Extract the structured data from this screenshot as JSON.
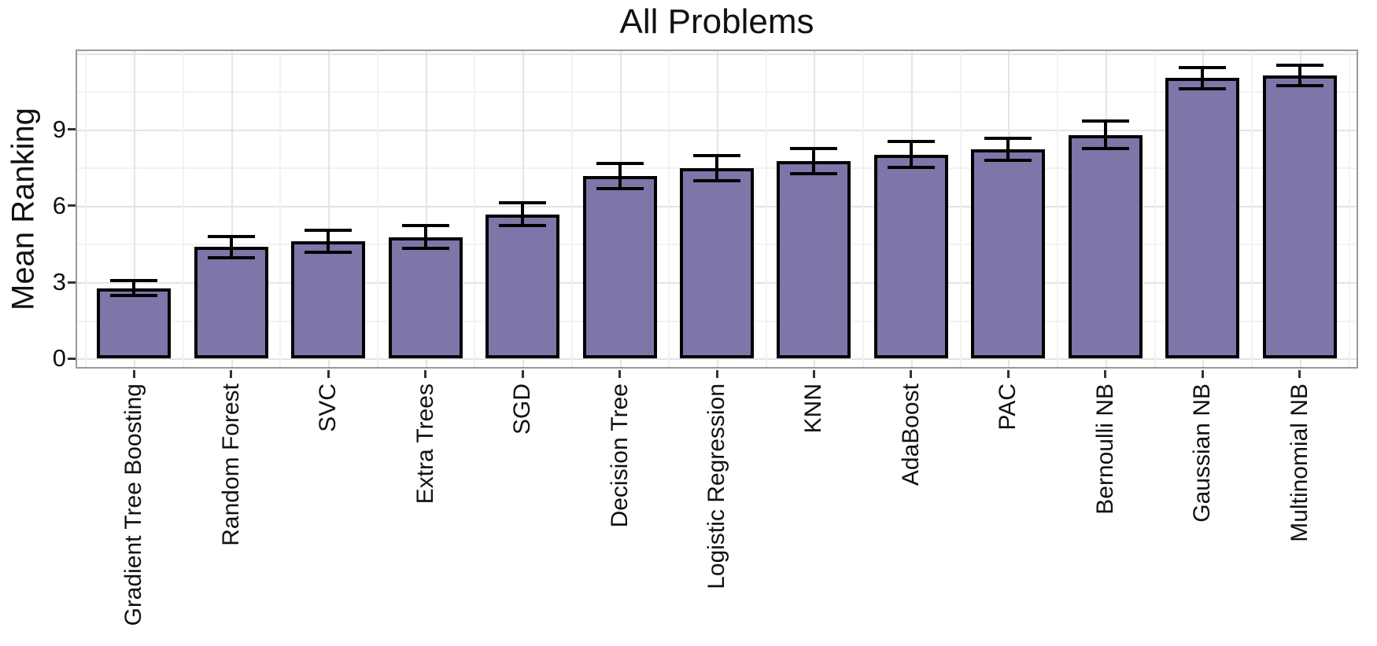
{
  "chart_data": {
    "type": "bar",
    "title": "All Problems",
    "xlabel": "",
    "ylabel": "Mean Ranking",
    "categories": [
      "Gradient Tree Boosting",
      "Random Forest",
      "SVC",
      "Extra Trees",
      "SGD",
      "Decision Tree",
      "Logistic Regression",
      "KNN",
      "AdaBoost",
      "PAC",
      "Bernoulli NB",
      "Gaussian NB",
      "Multinomial NB"
    ],
    "values": [
      2.76,
      4.38,
      4.62,
      4.77,
      5.67,
      7.17,
      7.48,
      7.75,
      8.02,
      8.22,
      8.79,
      11.03,
      11.13
    ],
    "errors": [
      0.3,
      0.42,
      0.43,
      0.45,
      0.44,
      0.5,
      0.49,
      0.49,
      0.5,
      0.43,
      0.54,
      0.42,
      0.41
    ],
    "error_bar_style": "cap-and-stem, black",
    "ytick_labels": [
      "0",
      "3",
      "6",
      "9"
    ],
    "yticks": [
      0,
      3,
      6,
      9
    ],
    "grid_major_y": [
      0,
      3,
      6,
      9,
      12
    ],
    "grid_minor_y": [
      1.5,
      4.5,
      7.5,
      10.5
    ],
    "ylim": [
      -0.4,
      12.15
    ],
    "grid": "on",
    "legend": "none",
    "bar_orientation": "vertical",
    "x_label_rotation_deg": 90,
    "colors": {
      "bar_fill": "#7D76A8",
      "bar_edge": "#000000",
      "error_bar": "#000000",
      "grid_major": "#e4e4e4",
      "grid_minor": "#f2f2f2",
      "panel_border": "#9a9a9a",
      "tick_mark": "#333333",
      "text": "#111111",
      "background": "#ffffff"
    }
  }
}
